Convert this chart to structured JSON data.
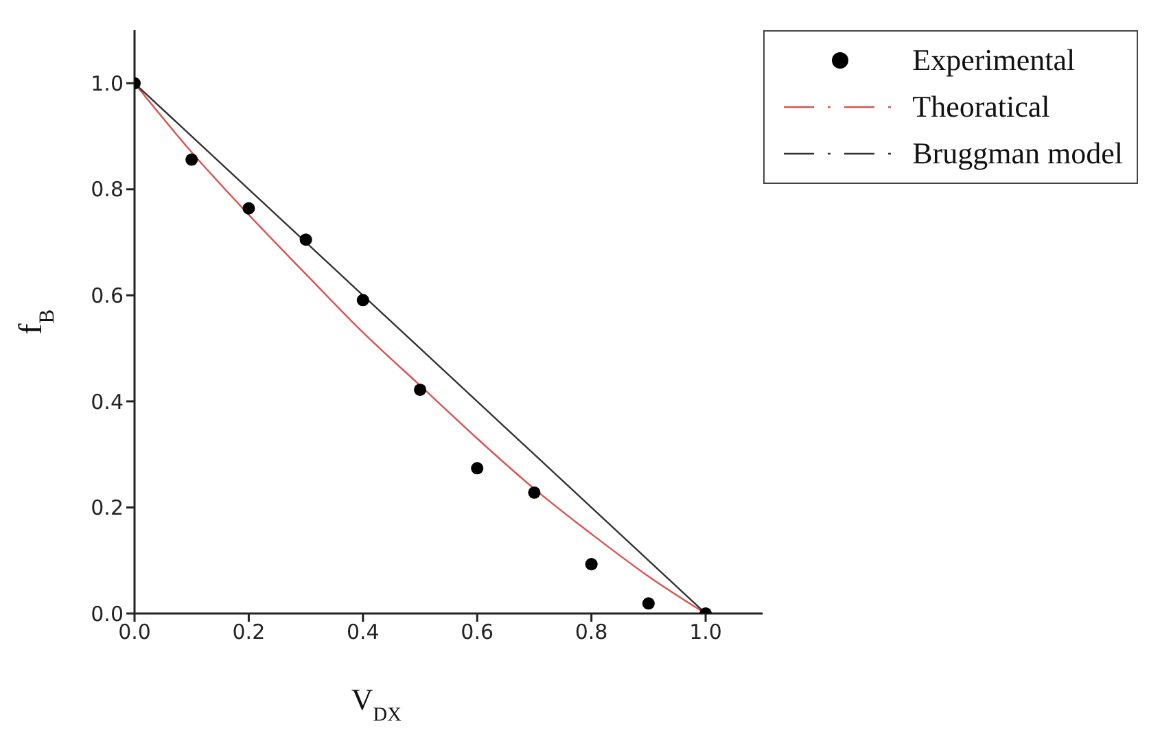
{
  "chart_data": {
    "type": "scatter",
    "xlabel": "V$_{DX}$",
    "ylabel": "f$_{B}$",
    "xlim": [
      0,
      1.1
    ],
    "xticks": [
      {
        "value": 0,
        "label": "0.0"
      },
      {
        "value": 0.2,
        "label": "0.2"
      },
      {
        "value": 0.4,
        "label": "0.4"
      },
      {
        "value": 0.6,
        "label": "0.6"
      },
      {
        "value": 0.8,
        "label": "0.8"
      },
      {
        "value": 1,
        "label": "1.0"
      }
    ],
    "ylim": [
      0,
      1.1
    ],
    "yticks": [
      {
        "value": 0,
        "label": "0.0"
      },
      {
        "value": 0.2,
        "label": "0.2"
      },
      {
        "value": 0.4,
        "label": "0.4"
      },
      {
        "value": 0.6,
        "label": "0.6"
      },
      {
        "value": 0.8,
        "label": "0.8"
      },
      {
        "value": 1,
        "label": "1.0"
      }
    ],
    "legend": "top right",
    "series": [
      {
        "name": "Experimental",
        "marker": "circle",
        "color": "#000000",
        "x": [
          0,
          0.1,
          0.2,
          0.3,
          0.4,
          0.5,
          0.6,
          0.7,
          0.8,
          0.9,
          1
        ],
        "values": [
          1,
          0.856,
          0.764,
          0.705,
          0.591,
          0.422,
          0.274,
          0.228,
          0.093,
          0.019,
          0
        ]
      },
      {
        "name": "Theoratical",
        "type": "line",
        "marker": "none",
        "color": "#d9534f",
        "x": [
          0,
          0.1,
          0.2,
          0.3,
          0.4,
          0.5,
          0.6,
          0.7,
          0.8,
          0.9,
          1
        ],
        "values": [
          1,
          0.87,
          0.752,
          0.64,
          0.53,
          0.43,
          0.33,
          0.235,
          0.15,
          0.07,
          0
        ]
      },
      {
        "name": "Bruggman model",
        "type": "line",
        "marker": "none",
        "color": "#333333",
        "x": [
          0,
          1
        ],
        "values": [
          1,
          0
        ]
      }
    ]
  }
}
